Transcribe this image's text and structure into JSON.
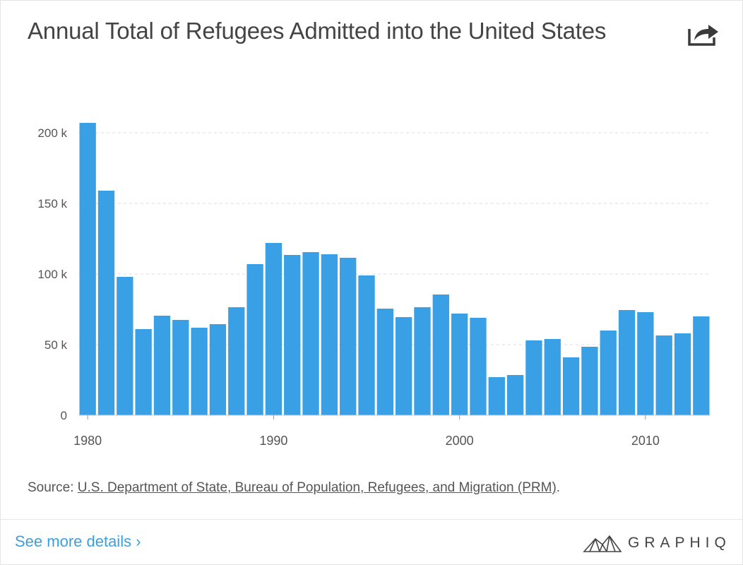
{
  "header": {
    "title": "Annual Total of Refugees Admitted into the United States",
    "share_icon": "share-icon"
  },
  "footer": {
    "source_prefix": "Source: ",
    "source_link": "U.S. Department of State, Bureau of Population, Refugees, and Migration (PRM)",
    "source_suffix": ".",
    "more_link": "See more details ›",
    "brand": "GRAPHIQ"
  },
  "colors": {
    "bar": "#3aa0e6",
    "grid": "#dddddd",
    "axis_text": "#555555",
    "link": "#3aa0dd"
  },
  "chart_data": {
    "type": "bar",
    "x": [
      1980,
      1981,
      1982,
      1983,
      1984,
      1985,
      1986,
      1987,
      1988,
      1989,
      1990,
      1991,
      1992,
      1993,
      1994,
      1995,
      1996,
      1997,
      1998,
      1999,
      2000,
      2001,
      2002,
      2003,
      2004,
      2005,
      2006,
      2007,
      2008,
      2009,
      2010,
      2011,
      2012,
      2013
    ],
    "values": [
      207000,
      159000,
      98000,
      61000,
      70500,
      67500,
      62000,
      64500,
      76500,
      107000,
      122000,
      113500,
      115500,
      114000,
      111500,
      99000,
      75500,
      69500,
      76500,
      85500,
      72000,
      69000,
      27000,
      28500,
      53000,
      54000,
      41000,
      48500,
      60000,
      74500,
      73000,
      56500,
      58000,
      70000
    ],
    "x_ticks": [
      1980,
      1990,
      2000,
      2010
    ],
    "x_tick_labels": [
      "1980",
      "1990",
      "2000",
      "2010"
    ],
    "y_ticks": [
      0,
      50000,
      100000,
      150000,
      200000
    ],
    "y_tick_labels": [
      "0",
      "50 k",
      "100 k",
      "150 k",
      "200 k"
    ],
    "ylim": [
      0,
      210000
    ],
    "title": "Annual Total of Refugees Admitted into the United States",
    "xlabel": "",
    "ylabel": "",
    "grid": true,
    "legend": "none"
  }
}
